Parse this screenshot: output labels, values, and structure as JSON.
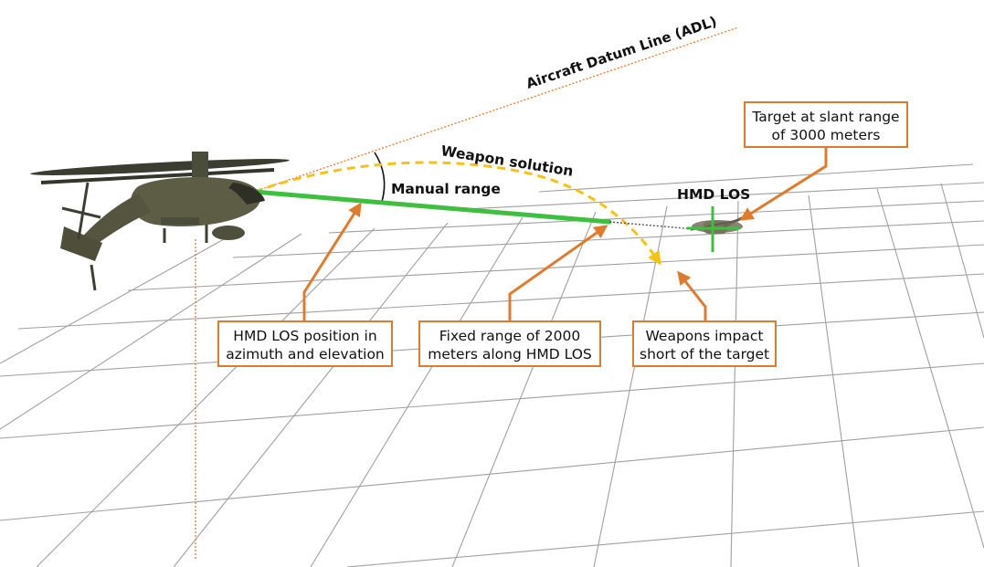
{
  "labels": {
    "adl": "Aircraft Datum Line (ADL)",
    "weapon_solution": "Weapon solution",
    "manual_range": "Manual range",
    "hmd_los": "HMD LOS"
  },
  "callouts": {
    "target": [
      "Target at slant range",
      "of 3000 meters"
    ],
    "hmd_position": [
      "HMD LOS position in",
      "azimuth and elevation"
    ],
    "fixed_range": [
      "Fixed range of 2000",
      "meters along HMD LOS"
    ],
    "weapons_impact": [
      "Weapons impact",
      "short of the target"
    ]
  },
  "colors": {
    "callout_border": "#e07b2e",
    "arrow": "#e07b2e",
    "los_line": "#3fbf3f",
    "trajectory": "#f2c417",
    "adl_line": "#e07b2e",
    "grid": "#9a9a9a"
  },
  "icons": {
    "attack_helicopter": "helicopter-icon",
    "target_helicopter": "target-helicopter-icon"
  }
}
